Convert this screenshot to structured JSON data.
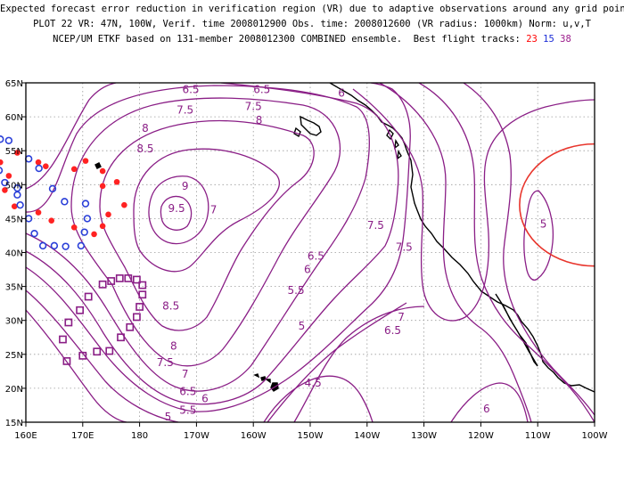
{
  "header": {
    "line1": "Expected forecast error reduction in verification region (VR) due to adaptive observations around any grid point.",
    "line2": "PLOT 22 VR: 47N, 100W, Verif. time 2008012900 Obs. time: 2008012600 (VR radius: 1000km) Norm: u,v,T",
    "line3_prefix": "NCEP/UM ETKF based on 131-member 2008012300 COMBINED ensemble.  Best flight tracks:",
    "track_red": "23",
    "track_blue": "15",
    "track_purple": "38"
  },
  "colors": {
    "contour": "#8a1e86",
    "coast": "#000000",
    "grid": "#9a9a9a",
    "vr_circle": "#e8352c",
    "track_red": "#ff2222",
    "track_blue": "#2a3fd8",
    "track_purple": "#8a1e86"
  },
  "axes": {
    "lon_labels": [
      "160E",
      "170E",
      "180",
      "170W",
      "160W",
      "150W",
      "140W",
      "130W",
      "120W",
      "110W",
      "100W"
    ],
    "lat_labels": [
      "65N",
      "60N",
      "55N",
      "50N",
      "45N",
      "40N",
      "35N",
      "30N",
      "25N",
      "20N",
      "15N"
    ],
    "lon_range": [
      160,
      260
    ],
    "lat_range": [
      15,
      65
    ]
  },
  "contour_labels": [
    {
      "text": "6.5",
      "lon": 171,
      "lat": 64
    },
    {
      "text": "6.5",
      "lon": 158.5,
      "lat": 64
    },
    {
      "text": "7.5",
      "lon": 160,
      "lat": 61.5
    },
    {
      "text": "7.5",
      "lon": 172,
      "lat": 61
    },
    {
      "text": "6",
      "lon": 144.5,
      "lat": 63.5
    },
    {
      "text": "8",
      "lon": 159,
      "lat": 59.5
    },
    {
      "text": "8",
      "lon": 179,
      "lat": 58.3
    },
    {
      "text": "8.5",
      "lon": 179,
      "lat": 55.3
    },
    {
      "text": "9",
      "lon": 172,
      "lat": 49.8
    },
    {
      "text": "9.5",
      "lon": 173.5,
      "lat": 46.5
    },
    {
      "text": "7",
      "lon": 167,
      "lat": 46.3
    },
    {
      "text": "7.5",
      "lon": 138.5,
      "lat": 44
    },
    {
      "text": "7.5",
      "lon": 133.5,
      "lat": 40.8
    },
    {
      "text": "5",
      "lon": 109,
      "lat": 44.2
    },
    {
      "text": "6.5",
      "lon": 149,
      "lat": 39.5
    },
    {
      "text": "6",
      "lon": 150.5,
      "lat": 37.5
    },
    {
      "text": "5.5",
      "lon": 152.5,
      "lat": 34.4
    },
    {
      "text": "8.5",
      "lon": 174.5,
      "lat": 32.1
    },
    {
      "text": "7",
      "lon": 134,
      "lat": 30.5
    },
    {
      "text": "6.5",
      "lon": 135.5,
      "lat": 28.5
    },
    {
      "text": "5",
      "lon": 151.5,
      "lat": 29.2
    },
    {
      "text": "8",
      "lon": 174,
      "lat": 26.2
    },
    {
      "text": "7.5",
      "lon": 175.5,
      "lat": 23.8
    },
    {
      "text": "7",
      "lon": 172,
      "lat": 22.1
    },
    {
      "text": "6.5",
      "lon": 171.5,
      "lat": 19.5
    },
    {
      "text": "5.5",
      "lon": 171.5,
      "lat": 16.8
    },
    {
      "text": "6",
      "lon": 168.5,
      "lat": 18.5
    },
    {
      "text": "5",
      "lon": 175,
      "lat": 15.8
    },
    {
      "text": "4.5",
      "lon": 149.5,
      "lat": 20.8
    },
    {
      "text": "6",
      "lon": 119,
      "lat": 17
    }
  ],
  "flight_tracks": {
    "red_points": [
      [
        173.5,
        52
      ],
      [
        168.5,
        52.3
      ],
      [
        170.5,
        53.5
      ],
      [
        163.5,
        52.7
      ],
      [
        162.2,
        53.3
      ],
      [
        158.5,
        54.7
      ],
      [
        155.5,
        53.3
      ],
      [
        154.2,
        51.8
      ],
      [
        176,
        50.4
      ],
      [
        173.5,
        49.8
      ],
      [
        177.3,
        47
      ],
      [
        174.5,
        45.6
      ],
      [
        173.5,
        43.9
      ],
      [
        172,
        42.7
      ],
      [
        168.5,
        43.7
      ],
      [
        164.5,
        44.7
      ],
      [
        162.2,
        45.9
      ],
      [
        158,
        46.8
      ],
      [
        156.3,
        49.2
      ],
      [
        157,
        51.3
      ]
    ],
    "blue_points": [
      [
        157,
        56.5
      ],
      [
        155.5,
        56.7
      ],
      [
        153.8,
        55.8
      ],
      [
        153.5,
        54.3
      ],
      [
        153.7,
        53
      ],
      [
        155.3,
        52.1
      ],
      [
        156.3,
        50.3
      ],
      [
        158.5,
        49.5
      ],
      [
        160.5,
        53.8
      ],
      [
        162.3,
        52.4
      ],
      [
        164.7,
        49.4
      ],
      [
        166.8,
        47.5
      ],
      [
        170.5,
        47.2
      ],
      [
        170.8,
        45
      ],
      [
        170.3,
        43
      ],
      [
        169.7,
        41
      ],
      [
        167,
        40.9
      ],
      [
        165,
        41
      ],
      [
        163,
        41
      ],
      [
        161.5,
        42.8
      ],
      [
        160.5,
        45
      ],
      [
        159,
        47
      ],
      [
        158.5,
        48.5
      ]
    ],
    "purple_points": [
      [
        180.5,
        35.2
      ],
      [
        179.5,
        36
      ],
      [
        178,
        36.2
      ],
      [
        176.5,
        36.2
      ],
      [
        175,
        35.8
      ],
      [
        173.5,
        35.3
      ],
      [
        171,
        33.5
      ],
      [
        169.5,
        31.5
      ],
      [
        167.5,
        29.7
      ],
      [
        166.5,
        27.2
      ],
      [
        167.2,
        24
      ],
      [
        170,
        24.8
      ],
      [
        172.5,
        25.4
      ],
      [
        174.7,
        25.5
      ],
      [
        176.7,
        27.5
      ],
      [
        178.3,
        29
      ],
      [
        179.5,
        30.5
      ],
      [
        180,
        32
      ],
      [
        180.5,
        33.8
      ]
    ]
  },
  "vr_circle": {
    "lat": 47,
    "lon": 260,
    "radius_km": 1000
  }
}
